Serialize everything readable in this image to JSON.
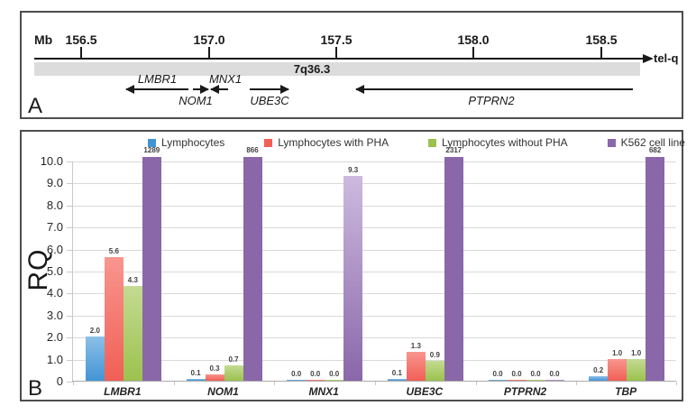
{
  "panel_a": {
    "letter": "A",
    "unit": "Mb",
    "scale_ticks": [
      "156.5",
      "157.0",
      "157.5",
      "158.0",
      "158.5"
    ],
    "band": "7q36.3",
    "telomere": "tel-q",
    "genes": [
      {
        "name": "LMBR1",
        "strand": "left"
      },
      {
        "name": "NOM1",
        "strand": "right"
      },
      {
        "name": "MNX1",
        "strand": "left"
      },
      {
        "name": "UBE3C",
        "strand": "right"
      },
      {
        "name": "PTPRN2",
        "strand": "left"
      }
    ]
  },
  "panel_b": {
    "letter": "B"
  },
  "chart_data": {
    "type": "bar",
    "title": "",
    "ylabel": "RQ",
    "xlabel": "",
    "ylim": [
      0,
      10
    ],
    "ytick_step": 1,
    "ytick_labels": [
      "0",
      "1.0",
      "2.0",
      "3.0",
      "4.0",
      "5.0",
      "6.0",
      "7.0",
      "8.0",
      "9.0",
      "10.0"
    ],
    "grid": true,
    "legend_position": "top",
    "categories": [
      "LMBR1",
      "NOM1",
      "MNX1",
      "UBE3C",
      "PTPRN2",
      "TBP"
    ],
    "series": [
      {
        "name": "Lymphocytes",
        "color": "#4394d4",
        "color_light": "#8cc0e8",
        "values": [
          2.0,
          0.1,
          0.0,
          0.1,
          0.0,
          0.2
        ],
        "labels": [
          "2.0",
          "0.1",
          "0.0",
          "0.1",
          "0.0",
          "0.2"
        ]
      },
      {
        "name": "Lymphocytes with PHA",
        "color": "#f15f56",
        "color_light": "#f8968e",
        "values": [
          5.6,
          0.3,
          0.0,
          1.3,
          0.0,
          1.0
        ],
        "labels": [
          "5.6",
          "0.3",
          "0.0",
          "1.3",
          "0.0",
          "1.0"
        ]
      },
      {
        "name": "Lymphocytes without PHA",
        "color": "#9cc24e",
        "color_light": "#c3db92",
        "values": [
          4.3,
          0.7,
          0.0,
          0.9,
          0.0,
          1.0
        ],
        "labels": [
          "4.3",
          "0.7",
          "0.0",
          "0.9",
          "0.0",
          "1.0"
        ]
      },
      {
        "name": "K562 cell line",
        "color": "#8a67a9",
        "color_light": "#ccbadf",
        "values": [
          1289,
          866,
          9.3,
          2317,
          0.0,
          682
        ],
        "labels": [
          "1289",
          "866",
          "9.3",
          "2317",
          "0.0",
          "682"
        ]
      }
    ]
  }
}
